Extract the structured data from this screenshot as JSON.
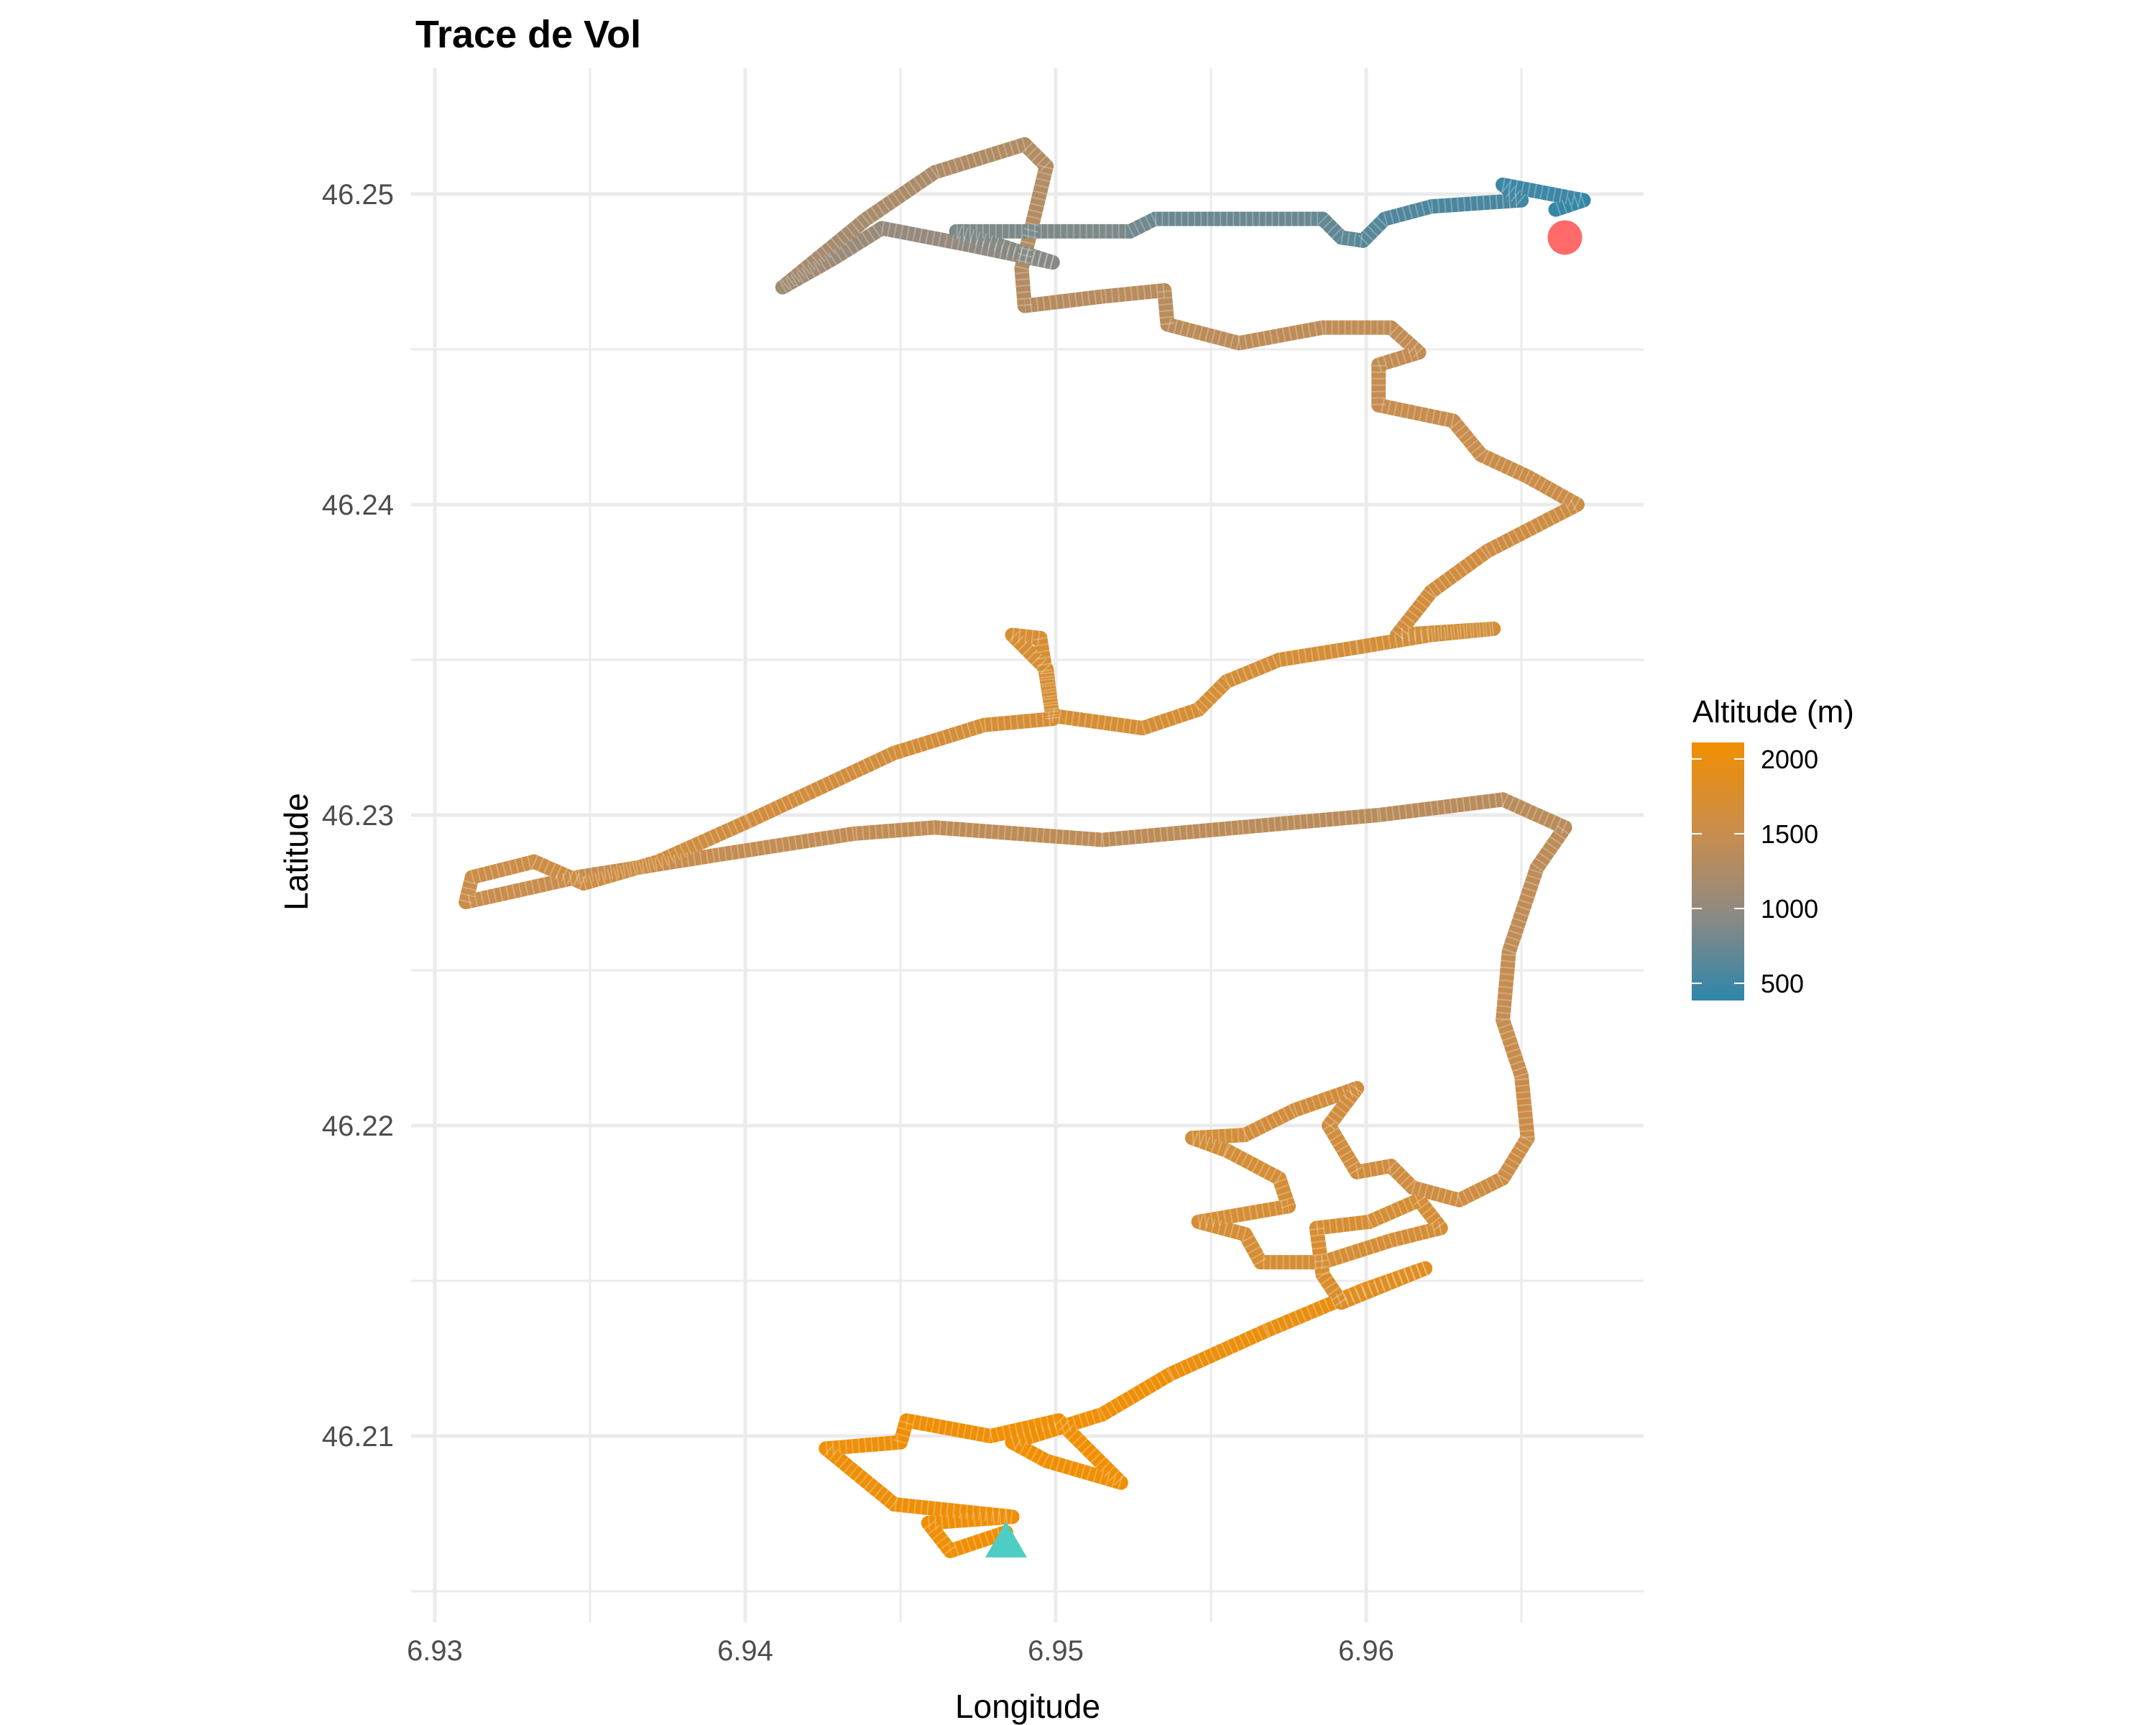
{
  "chart_data": {
    "type": "line",
    "title": "Trace de Vol",
    "xlabel": "Longitude",
    "ylabel": "Latitude",
    "xlim": [
      6.9292,
      6.9689
    ],
    "ylim": [
      46.2042,
      46.254
    ],
    "x_ticks": [
      "6.93",
      "6.94",
      "6.95",
      "6.96"
    ],
    "y_ticks": [
      "46.21",
      "46.22",
      "46.23",
      "46.24",
      "46.25"
    ],
    "grid": true,
    "legend": {
      "title": "Altitude (m)",
      "position": "right",
      "type": "colorbar",
      "range": [
        385,
        2110
      ],
      "ticks": [
        "500",
        "1000",
        "1500",
        "2000"
      ],
      "colors": {
        "low": "#2E86AB",
        "mid_low": "#938A7F",
        "mid_high": "#C88D4E",
        "high": "#F18F01"
      }
    },
    "track_columns": [
      "lon",
      "lat",
      "altitude_m"
    ],
    "track": [
      [
        6.9484,
        46.2069,
        2100
      ],
      [
        6.9466,
        46.2063,
        2080
      ],
      [
        6.9459,
        46.2072,
        2070
      ],
      [
        6.9486,
        46.2074,
        2060
      ],
      [
        6.9448,
        46.2078,
        2050
      ],
      [
        6.9426,
        46.2096,
        2040
      ],
      [
        6.945,
        46.2098,
        2050
      ],
      [
        6.9452,
        46.2105,
        2060
      ],
      [
        6.9479,
        46.21,
        2080
      ],
      [
        6.9501,
        46.2105,
        2100
      ],
      [
        6.9521,
        46.2085,
        2090
      ],
      [
        6.9497,
        46.2092,
        2080
      ],
      [
        6.9486,
        46.2098,
        2100
      ],
      [
        6.9515,
        46.2107,
        2080
      ],
      [
        6.9537,
        46.212,
        2050
      ],
      [
        6.9568,
        46.2134,
        2000
      ],
      [
        6.9599,
        46.2147,
        1950
      ],
      [
        6.9619,
        46.2154,
        1900
      ],
      [
        6.9592,
        46.2143,
        1800
      ],
      [
        6.9586,
        46.2152,
        1750
      ],
      [
        6.9584,
        46.2167,
        1720
      ],
      [
        6.9601,
        46.2169,
        1700
      ],
      [
        6.9617,
        46.2176,
        1700
      ],
      [
        6.9624,
        46.2167,
        1690
      ],
      [
        6.9608,
        46.2163,
        1680
      ],
      [
        6.9586,
        46.2156,
        1700
      ],
      [
        6.9566,
        46.2156,
        1700
      ],
      [
        6.9561,
        46.2165,
        1700
      ],
      [
        6.9546,
        46.2169,
        1700
      ],
      [
        6.9575,
        46.2174,
        1690
      ],
      [
        6.9572,
        46.2183,
        1680
      ],
      [
        6.9555,
        46.2192,
        1670
      ],
      [
        6.9544,
        46.2196,
        1660
      ],
      [
        6.9561,
        46.2197,
        1650
      ],
      [
        6.9577,
        46.2205,
        1640
      ],
      [
        6.9597,
        46.2212,
        1640
      ],
      [
        6.9588,
        46.22,
        1630
      ],
      [
        6.9597,
        46.2185,
        1620
      ],
      [
        6.9608,
        46.2187,
        1620
      ],
      [
        6.9615,
        46.218,
        1610
      ],
      [
        6.963,
        46.2176,
        1600
      ],
      [
        6.9644,
        46.2183,
        1580
      ],
      [
        6.9652,
        46.2196,
        1560
      ],
      [
        6.965,
        46.2216,
        1520
      ],
      [
        6.9644,
        46.2234,
        1480
      ],
      [
        6.9646,
        46.2256,
        1440
      ],
      [
        6.9655,
        46.2283,
        1400
      ],
      [
        6.9664,
        46.2296,
        1380
      ],
      [
        6.9644,
        46.2305,
        1360
      ],
      [
        6.9604,
        46.23,
        1360
      ],
      [
        6.9559,
        46.2296,
        1380
      ],
      [
        6.9515,
        46.2292,
        1400
      ],
      [
        6.9461,
        46.2296,
        1420
      ],
      [
        6.9435,
        46.2294,
        1440
      ],
      [
        6.939,
        46.2287,
        1460
      ],
      [
        6.9346,
        46.228,
        1500
      ],
      [
        6.931,
        46.2272,
        1520
      ],
      [
        6.9312,
        46.228,
        1540
      ],
      [
        6.9332,
        46.2285,
        1560
      ],
      [
        6.9348,
        46.2278,
        1580
      ],
      [
        6.9372,
        46.2285,
        1600
      ],
      [
        6.9401,
        46.2298,
        1620
      ],
      [
        6.9448,
        46.232,
        1650
      ],
      [
        6.9477,
        46.2329,
        1680
      ],
      [
        6.9499,
        46.2331,
        1700
      ],
      [
        6.9497,
        46.2347,
        1720
      ],
      [
        6.9486,
        46.2358,
        1730
      ],
      [
        6.9495,
        46.2357,
        1720
      ],
      [
        6.9499,
        46.2332,
        1700
      ],
      [
        6.9528,
        46.2328,
        1700
      ],
      [
        6.9546,
        46.2334,
        1690
      ],
      [
        6.9555,
        46.2343,
        1690
      ],
      [
        6.9572,
        46.235,
        1680
      ],
      [
        6.9597,
        46.2354,
        1670
      ],
      [
        6.9621,
        46.2358,
        1660
      ],
      [
        6.9641,
        46.236,
        1660
      ],
      [
        6.961,
        46.2358,
        1650
      ],
      [
        6.9621,
        46.2372,
        1630
      ],
      [
        6.9639,
        46.2385,
        1600
      ],
      [
        6.9668,
        46.24,
        1570
      ],
      [
        6.9652,
        46.2409,
        1540
      ],
      [
        6.9637,
        46.2416,
        1520
      ],
      [
        6.9628,
        46.2427,
        1500
      ],
      [
        6.9604,
        46.2432,
        1480
      ],
      [
        6.9604,
        46.2445,
        1460
      ],
      [
        6.9617,
        46.2449,
        1450
      ],
      [
        6.9608,
        46.2457,
        1440
      ],
      [
        6.9586,
        46.2457,
        1420
      ],
      [
        6.9559,
        46.2452,
        1400
      ],
      [
        6.9536,
        46.2458,
        1380
      ],
      [
        6.9535,
        46.2469,
        1360
      ],
      [
        6.9515,
        46.2467,
        1340
      ],
      [
        6.949,
        46.2464,
        1320
      ],
      [
        6.9489,
        46.2476,
        1300
      ],
      [
        6.9497,
        46.2509,
        1300
      ],
      [
        6.949,
        46.2516,
        1290
      ],
      [
        6.9461,
        46.2507,
        1250
      ],
      [
        6.9439,
        46.2492,
        1200
      ],
      [
        6.9412,
        46.247,
        1150
      ],
      [
        6.9428,
        46.2479,
        1100
      ],
      [
        6.9444,
        46.2489,
        1050
      ],
      [
        6.947,
        46.2484,
        1000
      ],
      [
        6.9499,
        46.2478,
        950
      ],
      [
        6.9468,
        46.2488,
        900
      ],
      [
        6.9524,
        46.2488,
        820
      ],
      [
        6.9532,
        46.2492,
        780
      ],
      [
        6.9586,
        46.2492,
        720
      ],
      [
        6.9592,
        46.2486,
        680
      ],
      [
        6.9599,
        46.2485,
        650
      ],
      [
        6.9606,
        46.2492,
        620
      ],
      [
        6.9621,
        46.2496,
        580
      ],
      [
        6.965,
        46.2498,
        530
      ],
      [
        6.9644,
        46.2503,
        500
      ],
      [
        6.967,
        46.2498,
        450
      ],
      [
        6.9661,
        46.2495,
        420
      ]
    ],
    "markers": {
      "start": {
        "shape": "triangle",
        "lon": 6.9484,
        "lat": 46.2066,
        "color": "#4ECDC4"
      },
      "end": {
        "shape": "circle",
        "lon": 6.9664,
        "lat": 46.2486,
        "color": "#FF6B6B"
      }
    }
  }
}
